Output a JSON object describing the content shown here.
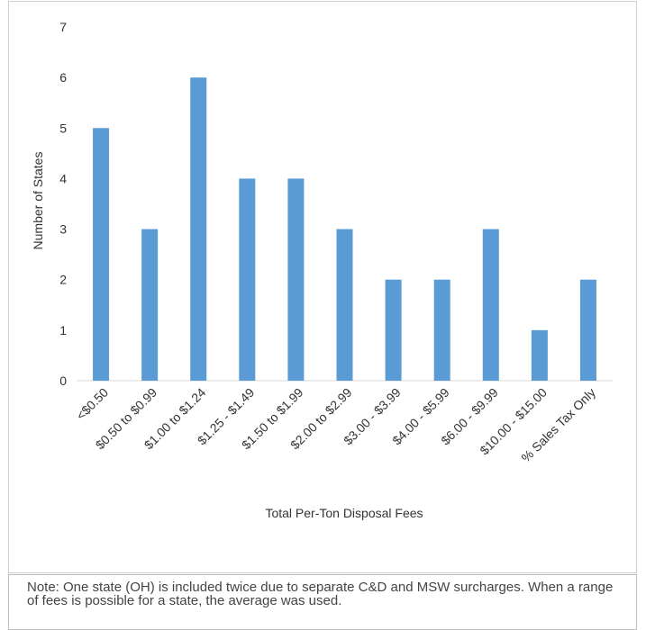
{
  "chart_data": {
    "type": "bar",
    "categories": [
      "<$0.50",
      "$0.50 to $0.99",
      "$1.00 to $1.24",
      "$1.25 - $1.49",
      "$1.50 to $1.99",
      "$2.00 to $2.99",
      "$3.00 - $3.99",
      "$4.00 - $5.99",
      "$6.00 - $9.99",
      "$10.00 - $15.00",
      "% Sales Tax Only"
    ],
    "values": [
      5,
      3,
      6,
      4,
      4,
      3,
      2,
      2,
      3,
      1,
      2
    ],
    "title": "",
    "xlabel": "Total Per-Ton Disposal Fees",
    "ylabel": "Number of States",
    "ylim": [
      0,
      7
    ],
    "yticks": [
      0,
      1,
      2,
      3,
      4,
      5,
      6,
      7
    ],
    "grid": false,
    "legend": "none",
    "bar_color": "#5b9bd5"
  },
  "note": {
    "text": "Note: One state (OH) is included twice due to separate C&D and MSW surcharges. When a range of fees is possible for a state, the average was used."
  }
}
